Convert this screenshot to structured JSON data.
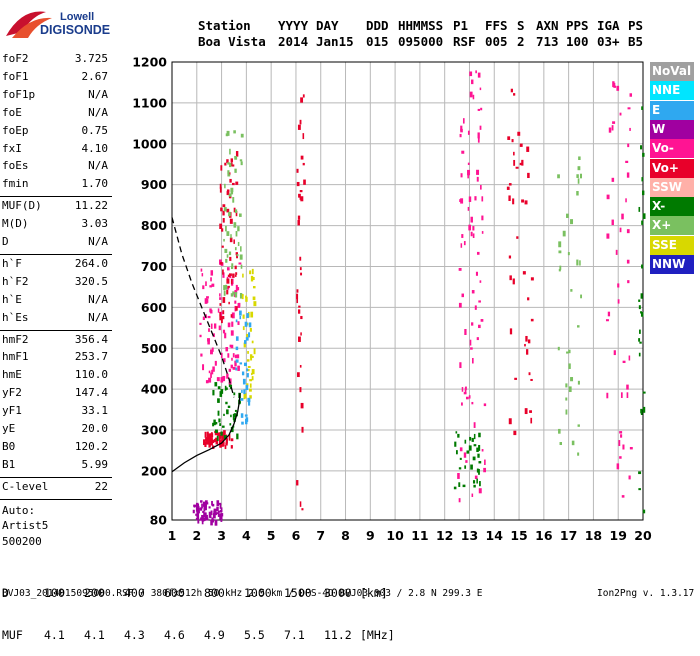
{
  "logo": {
    "line1": "Lowell",
    "line2": "DIGISONDE"
  },
  "header": {
    "row1": [
      "Station",
      "YYYY",
      "DAY",
      "DDD",
      "HHMMSS",
      "P1",
      "FFS",
      "S",
      "AXN",
      "PPS",
      "IGA",
      "PS"
    ],
    "row2": [
      "Boa Vista",
      "2014",
      "Jan15",
      "015",
      "095000",
      "RSF",
      "005",
      "2",
      "713",
      "100",
      "03+",
      "B5"
    ]
  },
  "parameters": [
    {
      "label": "foF2",
      "value": "3.725"
    },
    {
      "label": "foF1",
      "value": "2.67"
    },
    {
      "label": "foF1p",
      "value": "N/A"
    },
    {
      "label": "foE",
      "value": "N/A"
    },
    {
      "label": "foEp",
      "value": "0.75"
    },
    {
      "label": "fxI",
      "value": "4.10"
    },
    {
      "label": "foEs",
      "value": "N/A"
    },
    {
      "label": "fmin",
      "value": "1.70"
    },
    {
      "label": "MUF(D)",
      "value": "11.22"
    },
    {
      "label": "M(D)",
      "value": "3.03"
    },
    {
      "label": "D",
      "value": "N/A"
    },
    {
      "label": "h`F",
      "value": "264.0"
    },
    {
      "label": "h`F2",
      "value": "320.5"
    },
    {
      "label": "h`E",
      "value": "N/A"
    },
    {
      "label": "h`Es",
      "value": "N/A"
    },
    {
      "label": "hmF2",
      "value": "356.4"
    },
    {
      "label": "hmF1",
      "value": "253.7"
    },
    {
      "label": "hmE",
      "value": "110.0"
    },
    {
      "label": "yF2",
      "value": "147.4"
    },
    {
      "label": "yF1",
      "value": "33.1"
    },
    {
      "label": "yE",
      "value": "20.0"
    },
    {
      "label": "B0",
      "value": "120.2"
    },
    {
      "label": "B1",
      "value": "5.99"
    },
    {
      "label": "C-level",
      "value": "22"
    }
  ],
  "auto": [
    "Auto:",
    "Artist5",
    "500200"
  ],
  "legend": [
    {
      "label": "NoVal",
      "color": "#a0a0a0"
    },
    {
      "label": "NNE",
      "color": "#00e5ff"
    },
    {
      "label": "E",
      "color": "#2fa8f0"
    },
    {
      "label": "W",
      "color": "#a000a0"
    },
    {
      "label": "Vo-",
      "color": "#ff1493"
    },
    {
      "label": "Vo+",
      "color": "#e8002a"
    },
    {
      "label": "SSW",
      "color": "#ffb0a8"
    },
    {
      "label": "X-",
      "color": "#007a00"
    },
    {
      "label": "X+",
      "color": "#7ac060"
    },
    {
      "label": "SSE",
      "color": "#d8d800"
    },
    {
      "label": "NNW",
      "color": "#2020c0"
    }
  ],
  "dmuf": {
    "d_label": "D",
    "d_values": [
      "100",
      "200",
      "400",
      "600",
      "800",
      "1000",
      "1500",
      "3000"
    ],
    "d_unit": "[km]",
    "muf_label": "MUF",
    "muf_values": [
      "4.1",
      "4.1",
      "4.3",
      "4.6",
      "4.9",
      "5.5",
      "7.1",
      "11.2"
    ],
    "muf_unit": "[MHz]"
  },
  "footer": {
    "left": "BVJ03_2014015095000.RSF / 380fx512h 50 kHz 2.5 km / DPS-4D BVJ03 003 / 2.8 N 299.3 E",
    "right": "Ion2Png v. 1.3.17"
  },
  "chart_data": {
    "type": "scatter",
    "x_range": [
      1,
      20
    ],
    "y_range": [
      80,
      1200
    ],
    "x_ticks": [
      1,
      2,
      3,
      4,
      5,
      6,
      7,
      8,
      9,
      10,
      11,
      12,
      13,
      14,
      15,
      16,
      17,
      18,
      19,
      20
    ],
    "y_ticks": [
      80,
      200,
      300,
      400,
      500,
      600,
      700,
      800,
      900,
      1000,
      1100,
      1200
    ],
    "grid": true,
    "legend_position": "right",
    "profile_curve": [
      [
        1,
        198
      ],
      [
        1.5,
        220
      ],
      [
        2,
        238
      ],
      [
        2.5,
        252
      ],
      [
        3,
        268
      ],
      [
        3.3,
        288
      ],
      [
        3.5,
        315
      ],
      [
        3.65,
        345
      ],
      [
        3.72,
        370
      ],
      [
        3.74,
        390
      ]
    ],
    "muf_dashed_curve": [
      [
        1,
        820
      ],
      [
        1.4,
        730
      ],
      [
        1.8,
        660
      ],
      [
        2.2,
        600
      ],
      [
        2.6,
        540
      ],
      [
        3.0,
        480
      ],
      [
        3.3,
        425
      ],
      [
        3.5,
        380
      ]
    ],
    "trace_clusters": [
      {
        "name": "Vo+",
        "x": [
          2.2,
          3.4
        ],
        "y": [
          262,
          300
        ],
        "n": 60
      },
      {
        "name": "X-",
        "x": [
          2.6,
          3.7
        ],
        "y": [
          280,
          420
        ],
        "n": 40
      },
      {
        "name": "Vo-",
        "x": [
          2.1,
          3.7
        ],
        "y": [
          420,
          720
        ],
        "n": 90
      },
      {
        "name": "Vo+",
        "x": [
          2.9,
          3.6
        ],
        "y": [
          560,
          1000
        ],
        "n": 55
      },
      {
        "name": "X+",
        "x": [
          3.0,
          3.8
        ],
        "y": [
          600,
          1050
        ],
        "n": 50
      },
      {
        "name": "SSE",
        "x": [
          3.8,
          4.3
        ],
        "y": [
          380,
          700
        ],
        "n": 40
      },
      {
        "name": "E",
        "x": [
          3.5,
          4.1
        ],
        "y": [
          320,
          620
        ],
        "n": 30
      },
      {
        "name": "W",
        "x": [
          1.8,
          3.0
        ],
        "y": [
          80,
          130
        ],
        "n": 70
      },
      {
        "name": "Vo+",
        "x": [
          6.0,
          6.3
        ],
        "y": [
          80,
          1180
        ],
        "n": 35
      },
      {
        "name": "Vo-",
        "x": [
          12.5,
          13.6
        ],
        "y": [
          130,
          1180
        ],
        "n": 80
      },
      {
        "name": "X-",
        "x": [
          12.3,
          13.4
        ],
        "y": [
          160,
          300
        ],
        "n": 30
      },
      {
        "name": "Vo+",
        "x": [
          14.5,
          15.5
        ],
        "y": [
          200,
          1150
        ],
        "n": 40
      },
      {
        "name": "X+",
        "x": [
          16.5,
          17.5
        ],
        "y": [
          200,
          1000
        ],
        "n": 35
      },
      {
        "name": "Vo-",
        "x": [
          18.5,
          19.5
        ],
        "y": [
          90,
          1190
        ],
        "n": 45
      },
      {
        "name": "X-",
        "x": [
          19.8,
          20
        ],
        "y": [
          100,
          1100
        ],
        "n": 25
      }
    ]
  }
}
